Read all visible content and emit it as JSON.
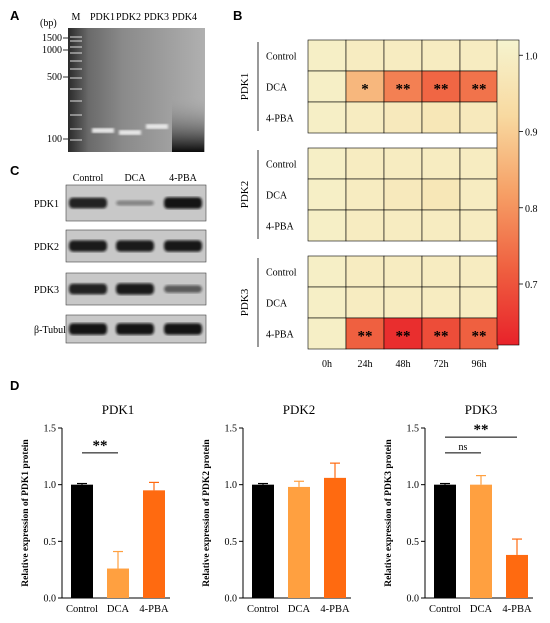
{
  "panels": {
    "A": "A",
    "B": "B",
    "C": "C",
    "D": "D"
  },
  "gel": {
    "unit": "(bp)",
    "lanes": [
      "M",
      "PDK1",
      "PDK2",
      "PDK3",
      "PDK4"
    ],
    "markers": [
      {
        "label": "1500",
        "bp": 1500
      },
      {
        "label": "1000",
        "bp": 1000
      },
      {
        "label": "500",
        "bp": 500
      },
      {
        "label": "100",
        "bp": 100
      }
    ]
  },
  "western": {
    "conditions": [
      "Control",
      "DCA",
      "4-PBA"
    ],
    "proteins": [
      {
        "name": "PDK1",
        "band_intensity": [
          0.85,
          0.15,
          0.95
        ]
      },
      {
        "name": "PDK2",
        "band_intensity": [
          0.9,
          0.9,
          0.92
        ]
      },
      {
        "name": "PDK3",
        "band_intensity": [
          0.85,
          0.9,
          0.45
        ]
      },
      {
        "name": "β-Tubulin",
        "band_intensity": [
          0.95,
          0.95,
          0.95
        ]
      }
    ]
  },
  "chart_data": [
    {
      "type": "heatmap",
      "x": [
        "0h",
        "24h",
        "48h",
        "72h",
        "96h"
      ],
      "groups": [
        {
          "name": "PDK1",
          "rows": [
            "Control",
            "DCA",
            "4-PBA"
          ],
          "values": [
            [
              1.0,
              0.99,
              0.99,
              0.99,
              0.99
            ],
            [
              1.0,
              0.86,
              0.77,
              0.73,
              0.75
            ],
            [
              1.0,
              0.99,
              0.98,
              0.97,
              0.98
            ]
          ],
          "stars": [
            [
              "",
              "",
              "",
              "",
              ""
            ],
            [
              "",
              "*",
              "**",
              "**",
              "**"
            ],
            [
              "",
              "",
              "",
              "",
              ""
            ]
          ]
        },
        {
          "name": "PDK2",
          "rows": [
            "Control",
            "DCA",
            "4-PBA"
          ],
          "values": [
            [
              1.0,
              0.99,
              0.99,
              0.99,
              0.99
            ],
            [
              1.0,
              0.99,
              0.98,
              0.97,
              0.99
            ],
            [
              1.0,
              0.99,
              0.99,
              0.99,
              0.99
            ]
          ],
          "stars": [
            [
              "",
              "",
              "",
              "",
              ""
            ],
            [
              "",
              "",
              "",
              "",
              ""
            ],
            [
              "",
              "",
              "",
              "",
              ""
            ]
          ]
        },
        {
          "name": "PDK3",
          "rows": [
            "Control",
            "DCA",
            "4-PBA"
          ],
          "values": [
            [
              1.0,
              0.99,
              0.99,
              0.99,
              0.99
            ],
            [
              1.0,
              0.99,
              0.99,
              0.99,
              0.99
            ],
            [
              1.0,
              0.72,
              0.64,
              0.69,
              0.72
            ]
          ],
          "stars": [
            [
              "",
              "",
              "",
              "",
              ""
            ],
            [
              "",
              "",
              "",
              "",
              ""
            ],
            [
              "",
              "**",
              "**",
              "**",
              "**"
            ]
          ]
        }
      ],
      "colorbar": {
        "min": 0.62,
        "max": 1.02,
        "ticks": [
          "1.0",
          "0.9",
          "0.8",
          "0.7"
        ],
        "tick_values": [
          1.0,
          0.9,
          0.8,
          0.7
        ]
      },
      "colors": {
        "low": "#e8222a",
        "mid": "#f6a066",
        "high": "#f6f4cf"
      }
    },
    {
      "type": "bar",
      "title": "PDK1",
      "ylabel": "Relative expression of PDK1 protein",
      "categories": [
        "Control",
        "DCA",
        "4-PBA"
      ],
      "values": [
        1.0,
        0.26,
        0.95
      ],
      "errors": [
        0.01,
        0.15,
        0.07
      ],
      "ylim": [
        0,
        1.5
      ],
      "yticks": [
        "0.0",
        "0.5",
        "1.0",
        "1.5"
      ],
      "ytick_values": [
        0,
        0.5,
        1.0,
        1.5
      ],
      "colors": [
        "#000000",
        "#ffa040",
        "#ff6a10"
      ],
      "significance": [
        {
          "from": 0,
          "to": 1,
          "label": "**"
        }
      ]
    },
    {
      "type": "bar",
      "title": "PDK2",
      "ylabel": "Relative expression of PDK2 protein",
      "categories": [
        "Control",
        "DCA",
        "4-PBA"
      ],
      "values": [
        1.0,
        0.98,
        1.06
      ],
      "errors": [
        0.01,
        0.05,
        0.13
      ],
      "ylim": [
        0,
        1.5
      ],
      "yticks": [
        "0.0",
        "0.5",
        "1.0",
        "1.5"
      ],
      "ytick_values": [
        0,
        0.5,
        1.0,
        1.5
      ],
      "colors": [
        "#000000",
        "#ffa040",
        "#ff6a10"
      ],
      "significance": []
    },
    {
      "type": "bar",
      "title": "PDK3",
      "ylabel": "Relative expression of PDK3 protein",
      "categories": [
        "Control",
        "DCA",
        "4-PBA"
      ],
      "values": [
        1.0,
        1.0,
        0.38
      ],
      "errors": [
        0.01,
        0.08,
        0.14
      ],
      "ylim": [
        0,
        1.5
      ],
      "yticks": [
        "0.0",
        "0.5",
        "1.0",
        "1.5"
      ],
      "ytick_values": [
        0,
        0.5,
        1.0,
        1.5
      ],
      "colors": [
        "#000000",
        "#ffa040",
        "#ff6a10"
      ],
      "significance": [
        {
          "from": 0,
          "to": 1,
          "label": "ns"
        },
        {
          "from": 0,
          "to": 2,
          "label": "**"
        }
      ]
    }
  ]
}
